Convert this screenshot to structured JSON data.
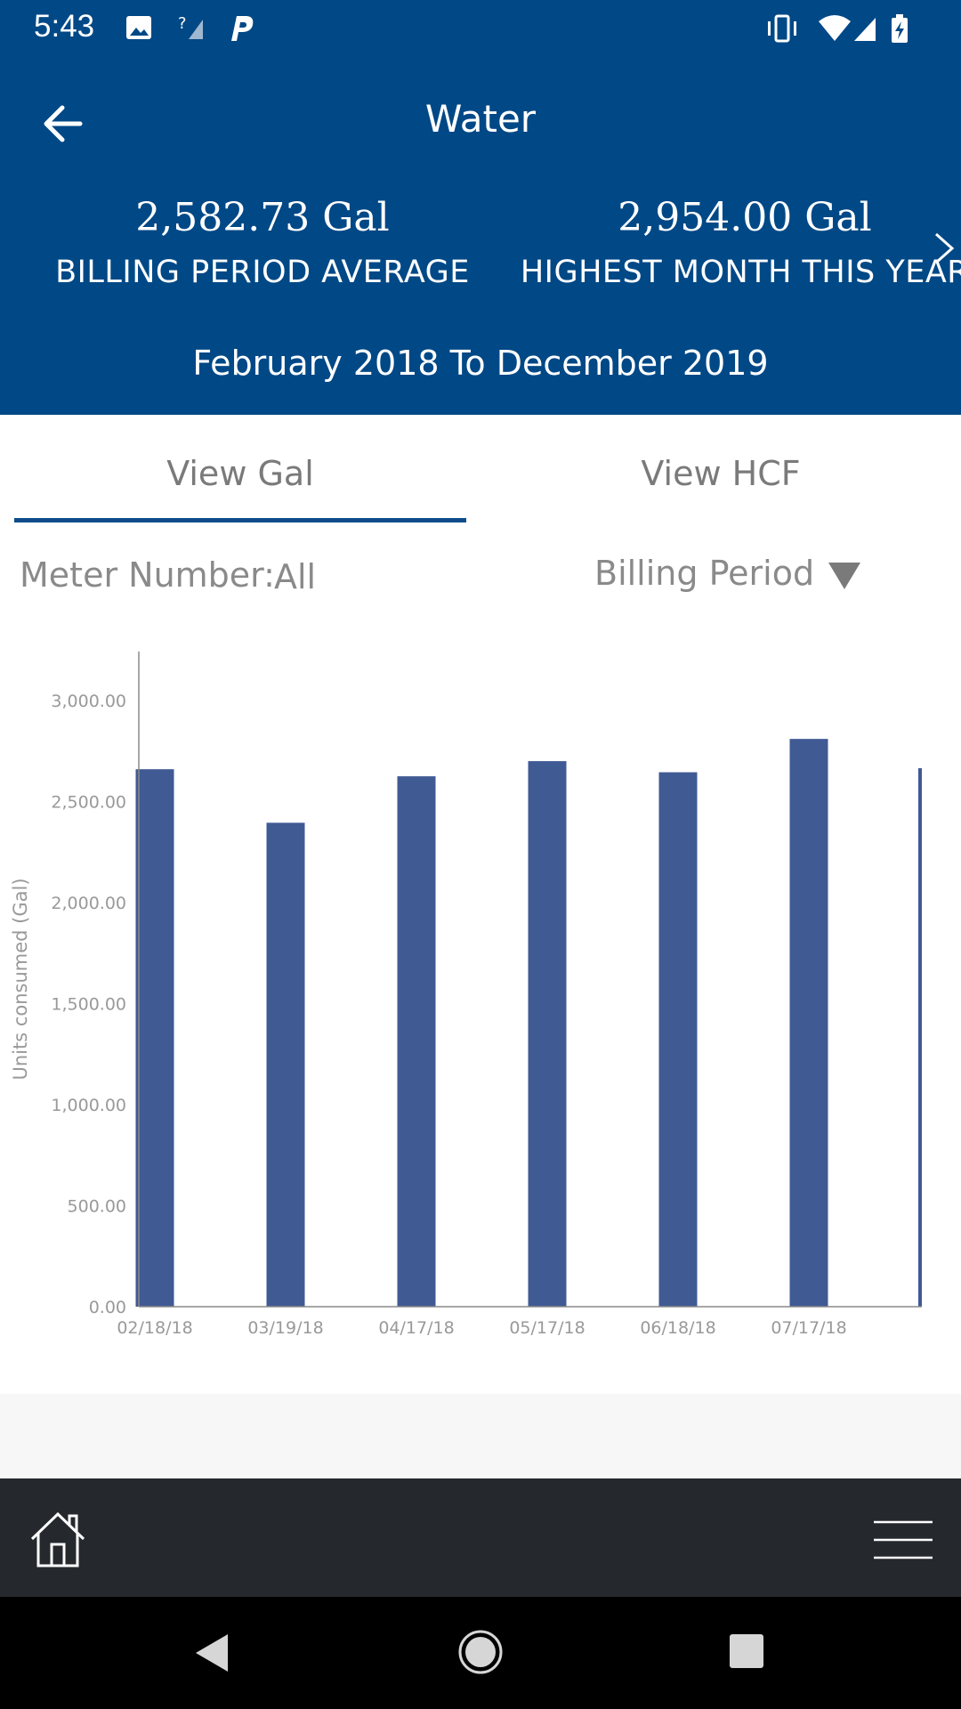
{
  "status_bar": {
    "time": "5:43"
  },
  "header": {
    "title": "Water",
    "stats": [
      {
        "value": "2,582.73 Gal",
        "label": "BILLING PERIOD AVERAGE"
      },
      {
        "value": "2,954.00 Gal",
        "label": "HIGHEST MONTH THIS YEAR"
      }
    ],
    "date_range": "February 2018 To December 2019"
  },
  "tabs": [
    {
      "label": "View Gal",
      "selected": true
    },
    {
      "label": "View HCF",
      "selected": false
    }
  ],
  "filters": {
    "meter_label": "Meter Number:",
    "meter_value": "All",
    "period_label": "Billing Period"
  },
  "colors": {
    "header": "#004886",
    "bar": "#405a94",
    "tab_indicator": "#0e4d8a",
    "bottom_nav": "#25292e"
  },
  "chart_data": {
    "type": "bar",
    "ylabel": "Units consumed (Gal)",
    "ylim": [
      0,
      3000
    ],
    "yticks": [
      "0.00",
      "500.00",
      "1,000.00",
      "1,500.00",
      "2,000.00",
      "2,500.00",
      "3,000.00"
    ],
    "categories": [
      "02/18/18",
      "03/19/18",
      "04/17/18",
      "05/17/18",
      "06/18/18",
      "07/17/18"
    ],
    "values": [
      2660,
      2395,
      2625,
      2700,
      2645,
      2810
    ],
    "partial_next_value": 2665
  }
}
